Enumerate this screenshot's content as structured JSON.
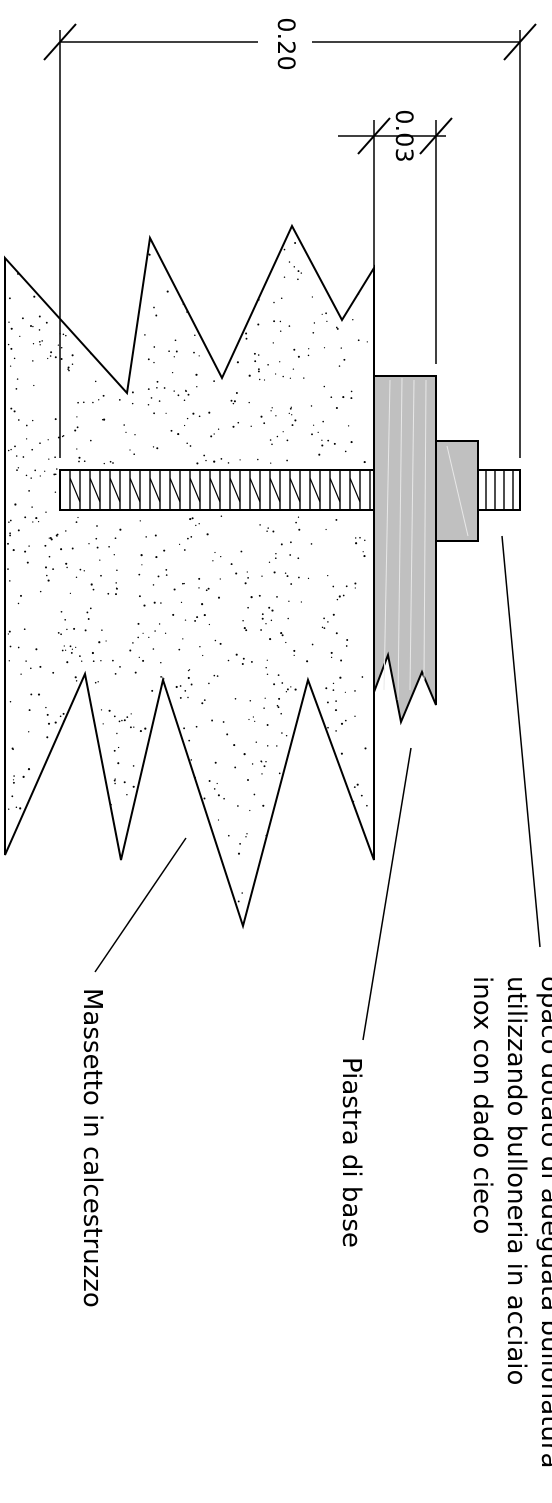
{
  "dimensions": {
    "overall": "0.20",
    "plate": "0.03"
  },
  "labels": {
    "bolt_note_line1": "opaco dotato di adeguata bullonatura",
    "bolt_note_line2": "utilizzando bulloneria in acciaio",
    "bolt_note_line3": "inox con dado cieco",
    "plate": "Piastra di base",
    "screed": "Massetto in calcestruzzo"
  },
  "colors": {
    "concrete_fill": "#ffffff",
    "plate_fill": "#c0c0c0",
    "line": "#000000"
  }
}
